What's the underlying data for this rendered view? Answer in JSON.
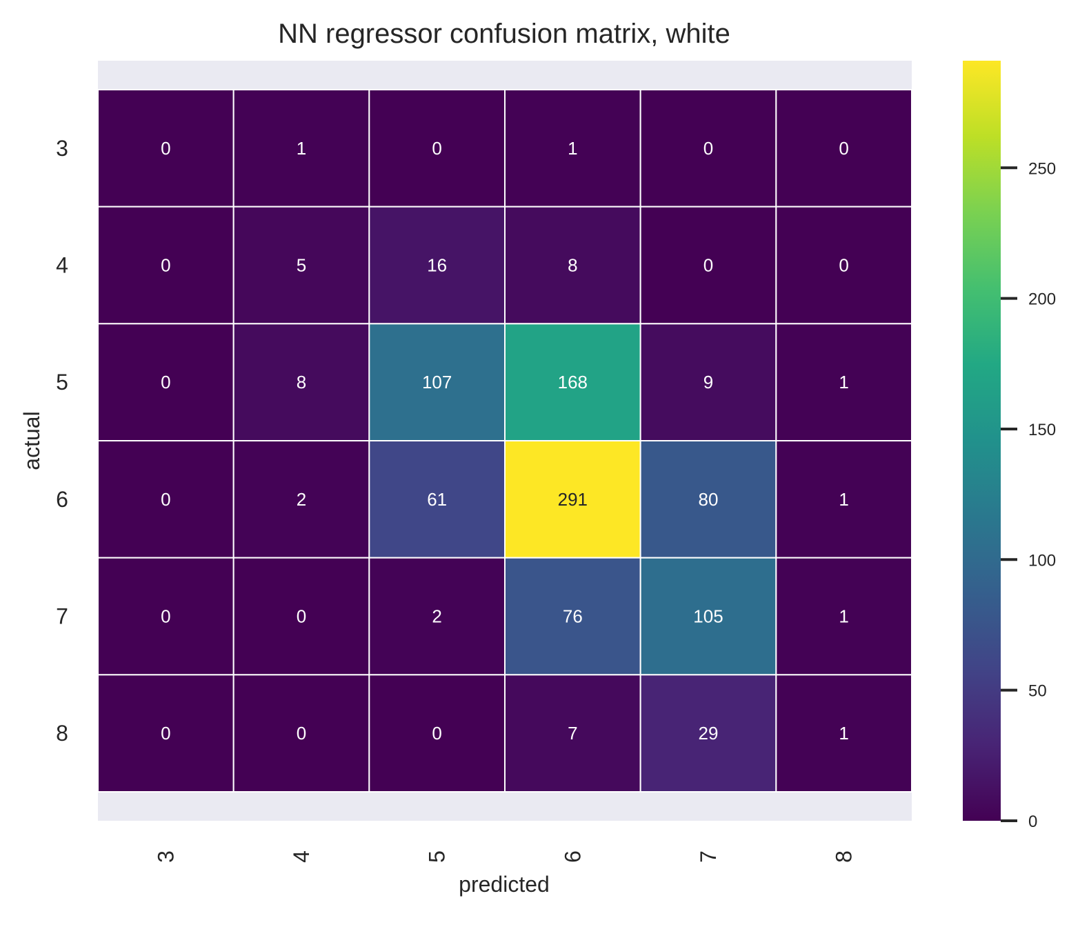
{
  "chart_data": {
    "type": "heatmap",
    "title": "NN regressor confusion matrix, white",
    "xlabel": "predicted",
    "ylabel": "actual",
    "x_categories": [
      "3",
      "4",
      "5",
      "6",
      "7",
      "8"
    ],
    "y_categories": [
      "3",
      "4",
      "5",
      "6",
      "7",
      "8"
    ],
    "values": [
      [
        0,
        1,
        0,
        1,
        0,
        0
      ],
      [
        0,
        5,
        16,
        8,
        0,
        0
      ],
      [
        0,
        8,
        107,
        168,
        9,
        1
      ],
      [
        0,
        2,
        61,
        291,
        80,
        1
      ],
      [
        0,
        0,
        2,
        76,
        105,
        1
      ],
      [
        0,
        0,
        0,
        7,
        29,
        1
      ]
    ],
    "colormap": "viridis",
    "colorbar": {
      "range": [
        0,
        291
      ],
      "ticks": [
        0,
        50,
        100,
        150,
        200,
        250
      ]
    },
    "grid": false,
    "cell_annotations": true,
    "colors": {
      "background": "#eaeaf2",
      "cell_border": "#ffffff",
      "text_light": "#ffffff",
      "text_dark": "#262626"
    }
  }
}
